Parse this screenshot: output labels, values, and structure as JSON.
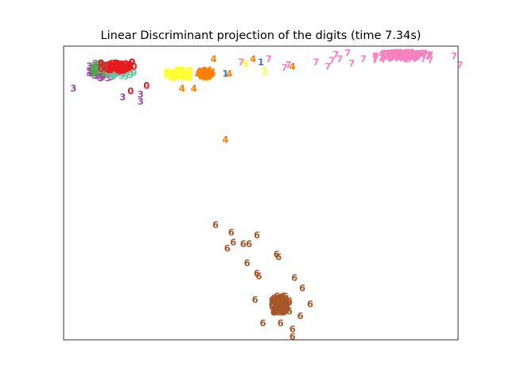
{
  "chart_data": {
    "type": "scatter",
    "title": "Linear Discriminant projection of the digits (time 7.34s)",
    "xlabel": "",
    "ylabel": "",
    "xticks": "none",
    "yticks": "none",
    "grid": false,
    "legend": "none",
    "marker": "digit text labels",
    "xlim": [
      0,
      1
    ],
    "ylim": [
      0,
      1
    ],
    "colors": {
      "0": "#e41a1c",
      "1": "#377eb8",
      "2": "#4daf4a",
      "3": "#984ea3",
      "4": "#ff7f00",
      "5": "#ffff33",
      "6": "#a65628",
      "7": "#f781bf",
      "8": "#999999",
      "9": "#66c2a5"
    },
    "clusters": [
      {
        "digit": "3",
        "center": [
          0.1,
          0.915
        ],
        "spread": [
          0.035,
          0.025
        ],
        "count": 60
      },
      {
        "digit": "2",
        "center": [
          0.09,
          0.92
        ],
        "spread": [
          0.03,
          0.02
        ],
        "count": 18
      },
      {
        "digit": "8",
        "center": [
          0.12,
          0.915
        ],
        "spread": [
          0.03,
          0.02
        ],
        "count": 20
      },
      {
        "digit": "9",
        "center": [
          0.15,
          0.91
        ],
        "spread": [
          0.03,
          0.02
        ],
        "count": 18
      },
      {
        "digit": "0",
        "center": [
          0.14,
          0.93
        ],
        "spread": [
          0.045,
          0.02
        ],
        "count": 60
      },
      {
        "digit": "5",
        "center": [
          0.29,
          0.905
        ],
        "spread": [
          0.03,
          0.012
        ],
        "count": 70
      },
      {
        "digit": "4",
        "center": [
          0.36,
          0.905
        ],
        "spread": [
          0.02,
          0.012
        ],
        "count": 60
      },
      {
        "digit": "7",
        "center": [
          0.86,
          0.965
        ],
        "spread": [
          0.07,
          0.012
        ],
        "count": 150
      },
      {
        "digit": "6",
        "center": [
          0.55,
          0.12
        ],
        "spread": [
          0.022,
          0.028
        ],
        "count": 110
      }
    ],
    "points": [
      {
        "label": "1",
        "x": 0.5,
        "y": 0.945
      },
      {
        "label": "1",
        "x": 0.41,
        "y": 0.905
      },
      {
        "label": "4",
        "x": 0.48,
        "y": 0.955
      },
      {
        "label": "4",
        "x": 0.58,
        "y": 0.93
      },
      {
        "label": "4",
        "x": 0.38,
        "y": 0.955
      },
      {
        "label": "4",
        "x": 0.42,
        "y": 0.905
      },
      {
        "label": "4",
        "x": 0.3,
        "y": 0.855
      },
      {
        "label": "4",
        "x": 0.33,
        "y": 0.855
      },
      {
        "label": "4",
        "x": 0.41,
        "y": 0.68
      },
      {
        "label": "5",
        "x": 0.46,
        "y": 0.94
      },
      {
        "label": "5",
        "x": 0.51,
        "y": 0.915
      },
      {
        "label": "7",
        "x": 0.45,
        "y": 0.945
      },
      {
        "label": "7",
        "x": 0.52,
        "y": 0.955
      },
      {
        "label": "7",
        "x": 0.56,
        "y": 0.925
      },
      {
        "label": "7",
        "x": 0.57,
        "y": 0.935
      },
      {
        "label": "7",
        "x": 0.64,
        "y": 0.945
      },
      {
        "label": "7",
        "x": 0.67,
        "y": 0.93
      },
      {
        "label": "7",
        "x": 0.69,
        "y": 0.97
      },
      {
        "label": "7",
        "x": 0.68,
        "y": 0.95
      },
      {
        "label": "7",
        "x": 0.7,
        "y": 0.955
      },
      {
        "label": "7",
        "x": 0.72,
        "y": 0.975
      },
      {
        "label": "7",
        "x": 0.73,
        "y": 0.94
      },
      {
        "label": "7",
        "x": 0.76,
        "y": 0.955
      },
      {
        "label": "7",
        "x": 1.005,
        "y": 0.935
      },
      {
        "label": "7",
        "x": 0.99,
        "y": 0.965
      },
      {
        "label": "3",
        "x": 0.195,
        "y": 0.81
      },
      {
        "label": "3",
        "x": 0.15,
        "y": 0.825
      },
      {
        "label": "3",
        "x": 0.195,
        "y": 0.835
      },
      {
        "label": "3",
        "x": 0.025,
        "y": 0.855
      },
      {
        "label": "0",
        "x": 0.17,
        "y": 0.845
      },
      {
        "label": "0",
        "x": 0.21,
        "y": 0.865
      },
      {
        "label": "6",
        "x": 0.385,
        "y": 0.39
      },
      {
        "label": "6",
        "x": 0.425,
        "y": 0.365
      },
      {
        "label": "6",
        "x": 0.43,
        "y": 0.33
      },
      {
        "label": "6",
        "x": 0.455,
        "y": 0.325
      },
      {
        "label": "6",
        "x": 0.47,
        "y": 0.325
      },
      {
        "label": "6",
        "x": 0.415,
        "y": 0.31
      },
      {
        "label": "6",
        "x": 0.49,
        "y": 0.355
      },
      {
        "label": "6",
        "x": 0.54,
        "y": 0.29
      },
      {
        "label": "6",
        "x": 0.545,
        "y": 0.28
      },
      {
        "label": "6",
        "x": 0.465,
        "y": 0.26
      },
      {
        "label": "6",
        "x": 0.49,
        "y": 0.225
      },
      {
        "label": "6",
        "x": 0.495,
        "y": 0.215
      },
      {
        "label": "6",
        "x": 0.585,
        "y": 0.21
      },
      {
        "label": "6",
        "x": 0.605,
        "y": 0.175
      },
      {
        "label": "6",
        "x": 0.625,
        "y": 0.12
      },
      {
        "label": "6",
        "x": 0.6,
        "y": 0.08
      },
      {
        "label": "6",
        "x": 0.58,
        "y": 0.035
      },
      {
        "label": "6",
        "x": 0.58,
        "y": 0.01
      },
      {
        "label": "6",
        "x": 0.505,
        "y": 0.055
      },
      {
        "label": "6",
        "x": 0.485,
        "y": 0.135
      },
      {
        "label": "6",
        "x": 0.55,
        "y": 0.055
      }
    ]
  }
}
